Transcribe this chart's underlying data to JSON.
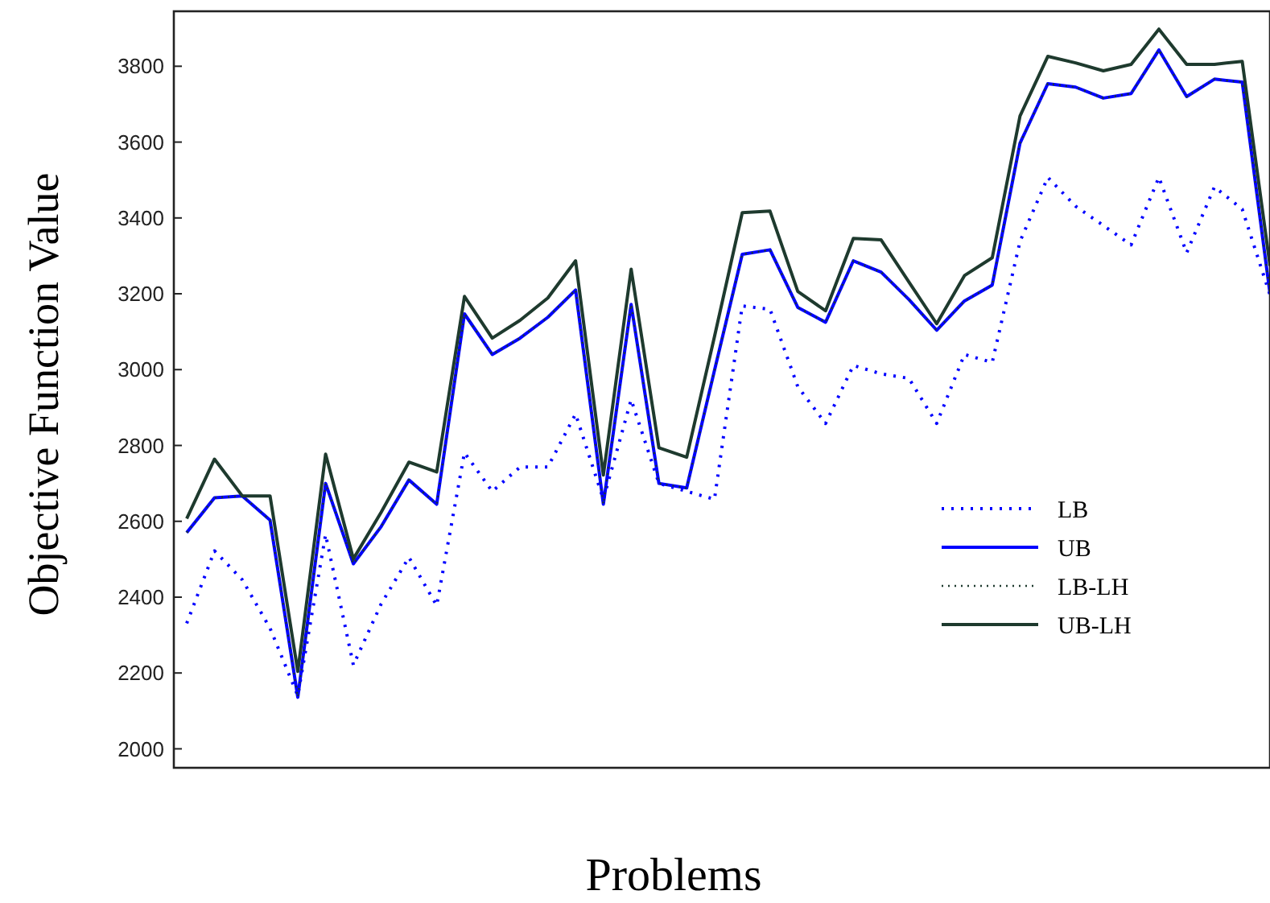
{
  "chart_data": {
    "type": "line",
    "xlabel": "Problems",
    "ylabel": "Objective Function Value",
    "categories": [
      null,
      null,
      null,
      null,
      null,
      null,
      null,
      null,
      null,
      null,
      null,
      null,
      null,
      null,
      null,
      null,
      null,
      null,
      null,
      null,
      null,
      null,
      null,
      null,
      null,
      null,
      null,
      null,
      null,
      null,
      null,
      null,
      null,
      null,
      null,
      null,
      null,
      null,
      null,
      null
    ],
    "ylim": [
      1950,
      3945
    ],
    "yticks": [
      2000,
      2200,
      2400,
      2600,
      2800,
      3000,
      3200,
      3400,
      3600,
      3800
    ],
    "grid": false,
    "legend": "right",
    "tick_labels": "y",
    "series": [
      {
        "name": "LB",
        "color": "#0000ff",
        "line_style": "dotted",
        "values": [
          2331,
          2522,
          2446,
          2318,
          2140,
          2565,
          2221,
          2382,
          2505,
          2378,
          2781,
          2679,
          2743,
          2743,
          2883,
          2658,
          2921,
          2700,
          2679,
          2658,
          3168,
          3159,
          2955,
          2858,
          3011,
          2989,
          2977,
          2858,
          3040,
          3019,
          3338,
          3507,
          3431,
          3380,
          3329,
          3507,
          3308,
          3482,
          3423,
          3197
        ]
      },
      {
        "name": "UB",
        "color": "#0000ff",
        "line_style": "solid",
        "values": [
          2570,
          2662,
          2667,
          2603,
          2136,
          2700,
          2488,
          2586,
          2709,
          2645,
          3147,
          3040,
          3083,
          3138,
          3210,
          2645,
          3172,
          2700,
          2688,
          2998,
          3304,
          3316,
          3164,
          3125,
          3287,
          3257,
          3185,
          3104,
          3181,
          3223,
          3597,
          3754,
          3745,
          3716,
          3728,
          3843,
          3720,
          3766,
          3758,
          3200
        ]
      },
      {
        "name": "LB-LH",
        "color": "#1e3a2e",
        "line_style": "dotted",
        "values": [
          2570,
          2662,
          2667,
          2603,
          2136,
          2700,
          2488,
          2586,
          2709,
          2645,
          3147,
          3040,
          3083,
          3138,
          3210,
          2645,
          3172,
          2700,
          2688,
          2998,
          3304,
          3316,
          3164,
          3125,
          3287,
          3257,
          3185,
          3104,
          3181,
          3223,
          3597,
          3754,
          3745,
          3716,
          3728,
          3843,
          3720,
          3766,
          3758,
          3200
        ]
      },
      {
        "name": "UB-LH",
        "color": "#1e3a2e",
        "line_style": "solid",
        "values": [
          2607,
          2764,
          2667,
          2667,
          2204,
          2777,
          2501,
          2624,
          2756,
          2730,
          3193,
          3083,
          3130,
          3189,
          3287,
          2722,
          3265,
          2794,
          2769,
          3087,
          3414,
          3418,
          3206,
          3155,
          3346,
          3342,
          3231,
          3121,
          3248,
          3295,
          3669,
          3826,
          3809,
          3788,
          3805,
          3898,
          3805,
          3805,
          3813,
          3274
        ]
      }
    ]
  }
}
